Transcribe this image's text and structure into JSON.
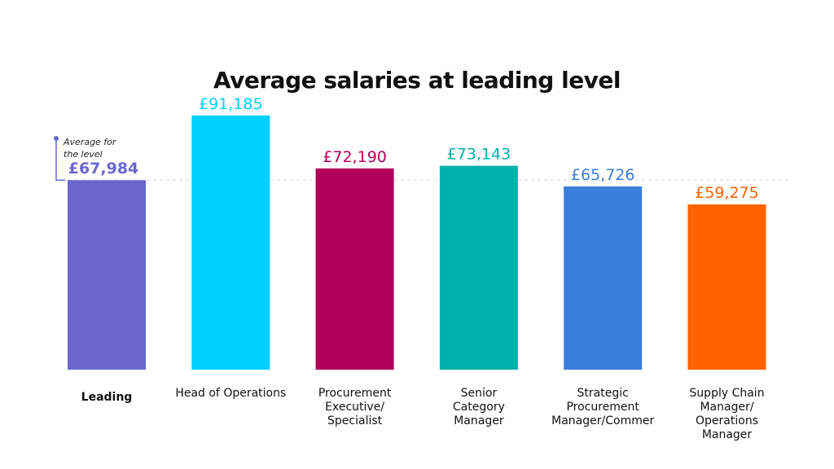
{
  "page": {
    "title": "Average salaries at leading level"
  },
  "annotation": {
    "line1": "Average for",
    "line2": "the level"
  },
  "chart_data": {
    "type": "bar",
    "title": "Average salaries at leading level",
    "xlabel": "",
    "ylabel": "",
    "ylim": [
      0,
      118000
    ],
    "reference_line": {
      "value": 67984,
      "label": "Average for the level",
      "style": "dashed"
    },
    "categories": [
      "Leading",
      "Head of Operations",
      "Procurement Executive/ Specialist",
      "Senior Category Manager",
      "Strategic Procurement Manager/Commer",
      "Supply Chain Manager/ Operations Manager"
    ],
    "category_lines": [
      [
        "Leading"
      ],
      [
        "Head of Operations"
      ],
      [
        "Procurement",
        "Executive/",
        "Specialist"
      ],
      [
        "Senior",
        "Category",
        "Manager"
      ],
      [
        "Strategic",
        "Procurement",
        "Manager/Commer"
      ],
      [
        "Supply Chain",
        "Manager/",
        "Operations",
        "Manager"
      ]
    ],
    "values": [
      67984,
      91185,
      72190,
      73143,
      65726,
      59275
    ],
    "value_labels": [
      "£67,984",
      "£91,185",
      "£72,190",
      "£73,143",
      "£65,726",
      "£59,275"
    ],
    "colors": [
      "#6A67CE",
      "#00CFFF",
      "#B0005C",
      "#00B0AA",
      "#3B7DDB",
      "#FF6200"
    ],
    "bold_first": true,
    "grid": false,
    "legend": "none"
  }
}
